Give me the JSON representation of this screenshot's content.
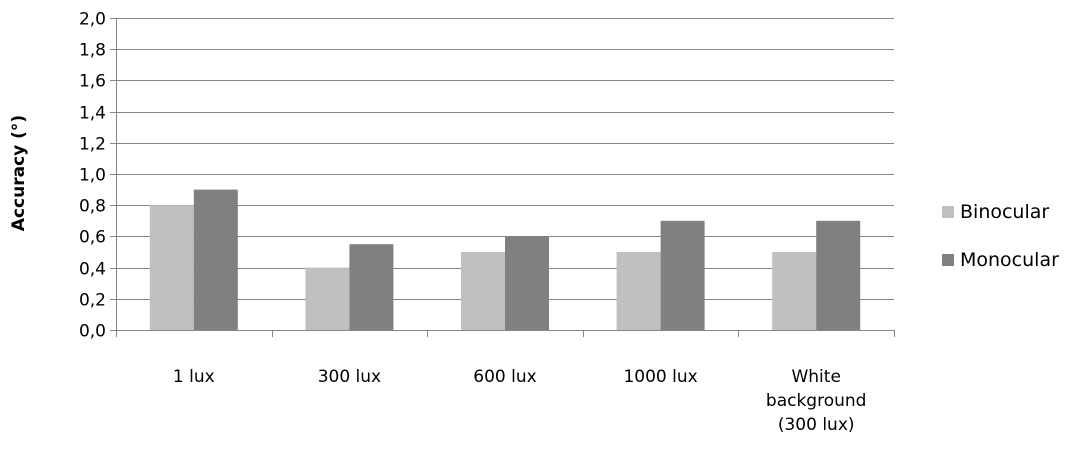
{
  "chart_data": {
    "type": "bar",
    "title": "",
    "xlabel": "",
    "ylabel": "Accuracy (°)",
    "ylim": [
      0,
      2.0
    ],
    "ytick_step": 0.2,
    "ytick_labels": [
      "0,0",
      "0,2",
      "0,4",
      "0,6",
      "0,8",
      "1,0",
      "1,2",
      "1,4",
      "1,6",
      "1,8",
      "2,0"
    ],
    "grid": true,
    "legend_position": "right",
    "categories": [
      [
        "1 lux"
      ],
      [
        "300 lux"
      ],
      [
        "600 lux"
      ],
      [
        "1000 lux"
      ],
      [
        "White",
        "background",
        "(300 lux)"
      ]
    ],
    "series": [
      {
        "name": "Binocular",
        "color": "#c0c0c0",
        "values": [
          0.8,
          0.4,
          0.5,
          0.5,
          0.5
        ]
      },
      {
        "name": "Monocular",
        "color": "#808080",
        "values": [
          0.9,
          0.55,
          0.6,
          0.7,
          0.7
        ]
      }
    ]
  }
}
